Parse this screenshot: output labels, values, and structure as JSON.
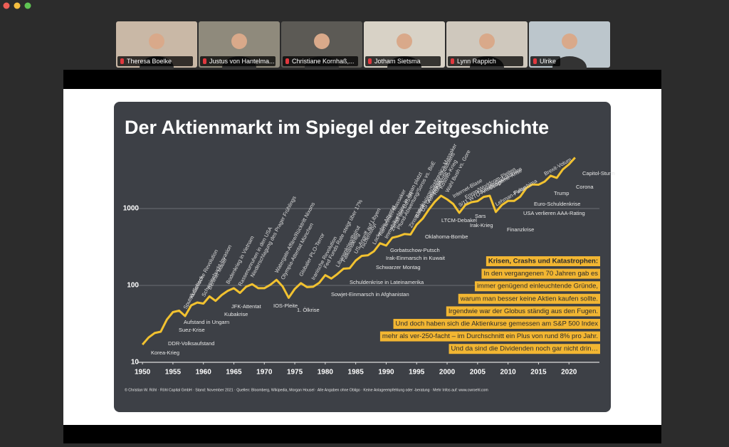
{
  "participants": [
    "Theresa Boelke",
    "Justus von Hantelma...",
    "Christiane Kornhaß,...",
    "Jotham Sietsma",
    "Lynn Rappich",
    "Ulrike"
  ],
  "slide": {
    "title": "Der Aktienmarkt im Spiegel der Zeitgeschichte",
    "textbox": [
      "Krisen, Crashs und Katastrophen:",
      "In den vergangenen 70 Jahren gab es",
      "immer genügend einleuchtende Gründe,",
      "warum man besser keine Aktien kaufen sollte.",
      "Irgendwie war der Globus ständig aus den Fugen.",
      "Und doch haben sich die Aktienkurse gemessen am S&P 500 Index",
      "mehr als ver-250-facht – im Durchschnitt ein Plus von rund 8% pro Jahr.",
      "Und da sind die Dividenden noch gar nicht drin…"
    ],
    "footer": "© Christian W. Röhl · Röhl Capital GmbH · Stand: November 2021 · Quellen: Bloomberg, Wikipedia, Morgan Housel · Alle Angaben ohne Obligo · Keine Anlageempfehlung oder -beratung · Mehr Infos auf: www.cwroehl.com"
  },
  "chart_data": {
    "type": "line",
    "color": "#f2c230",
    "log_scale": true,
    "grid": true,
    "x": [
      1950,
      1951,
      1952,
      1953,
      1954,
      1955,
      1956,
      1957,
      1958,
      1959,
      1960,
      1961,
      1962,
      1963,
      1964,
      1965,
      1966,
      1967,
      1968,
      1969,
      1970,
      1971,
      1972,
      1973,
      1974,
      1975,
      1976,
      1977,
      1978,
      1979,
      1980,
      1981,
      1982,
      1983,
      1984,
      1985,
      1986,
      1987,
      1988,
      1989,
      1990,
      1991,
      1992,
      1993,
      1994,
      1995,
      1996,
      1997,
      1998,
      1999,
      2000,
      2001,
      2002,
      2003,
      2004,
      2005,
      2006,
      2007,
      2008,
      2009,
      2010,
      2011,
      2012,
      2013,
      2014,
      2015,
      2016,
      2017,
      2018,
      2019,
      2020,
      2021
    ],
    "values": [
      17,
      21,
      24,
      25,
      36,
      45,
      47,
      40,
      55,
      60,
      58,
      72,
      63,
      75,
      85,
      92,
      80,
      96,
      104,
      92,
      92,
      102,
      118,
      97,
      69,
      90,
      107,
      95,
      96,
      108,
      136,
      123,
      141,
      165,
      167,
      211,
      242,
      247,
      278,
      353,
      330,
      417,
      436,
      466,
      459,
      616,
      741,
      970,
      1229,
      1469,
      1320,
      1148,
      880,
      1112,
      1212,
      1248,
      1418,
      1468,
      903,
      1115,
      1258,
      1258,
      1426,
      1848,
      2059,
      2044,
      2239,
      2674,
      2507,
      3231,
      3756,
      4600
    ],
    "xlim": [
      1948,
      2025
    ],
    "xticks": [
      1950,
      1955,
      1960,
      1965,
      1970,
      1975,
      1980,
      1985,
      1990,
      1995,
      2000,
      2005,
      2010,
      2015,
      2020
    ],
    "ylim": [
      10,
      10000
    ],
    "yticks": [
      10,
      100,
      1000
    ],
    "annotations": [
      "Korea-Krieg",
      "DDR-Volksaufstand",
      "Suez-Krise",
      "Aufstand in Ungarn",
      "Kubakrise",
      "JFK-Attentat",
      "IOS-Pleite",
      "1. Ölkrise",
      "Sowjet-Einmarsch in Afghanistan",
      "Schuldenkrise in Lateinamerika",
      "Schwarzer Montag",
      "Irak-Einmarsch in Kuwait",
      "Gorbatschow-Putsch",
      "Oklahoma-Bombe",
      "LTCM-Debakel",
      "Sars",
      "Irak-Krieg",
      "Finanzkrise",
      "USA verlieren AAA-Rating",
      "Euro-Schuldenkrise",
      "Trump",
      "Corona",
      "Capitol-Sturm"
    ],
    "event_labels": [
      "Sputnik-Schock",
      "Kubanische Revolution",
      "Schweinebucht-Invasion",
      "Berliner Mauer",
      "Bodenkrieg in Vietnam",
      "Rassenunruhen in den USA",
      "Niederschlagung des Prager Frühlings",
      "Watergate-Affäre/Rücktritt Nixons",
      "Olympia-Attentat München",
      "Globaler PLO-Terror",
      "Iranische Revolution",
      "Fed Funds Rate steigt über 17%",
      "Libanonkrieg/Beirut",
      "Falklandkrieg",
      "US-Angriff auf Libyen",
      "Tschernobyl",
      "Lockerbie-Attentat",
      "Tian'anmen-Massaker",
      "Immobilienblase in Japan platzt",
      "Zerfall der UdSSR",
      "Pfund-Abwertung/Soros vs. BoE",
      "Zinsschock",
      "Balkankriege/Srebrenica-Massaker",
      "US Government Shutdowns",
      "Asienkrise",
      "Rubelkrise",
      "Kosovo-Krieg",
      "Wahl Bush vs. Gore",
      "Internet-Blase",
      "9/11 WTC-Anschläge",
      "Enron/Worldcom-Pleiten",
      "Tsunami Südostasien",
      "Subprime-Krise",
      "Lehman-Pleite",
      "Fukushima",
      "Brexit-Votum"
    ]
  }
}
